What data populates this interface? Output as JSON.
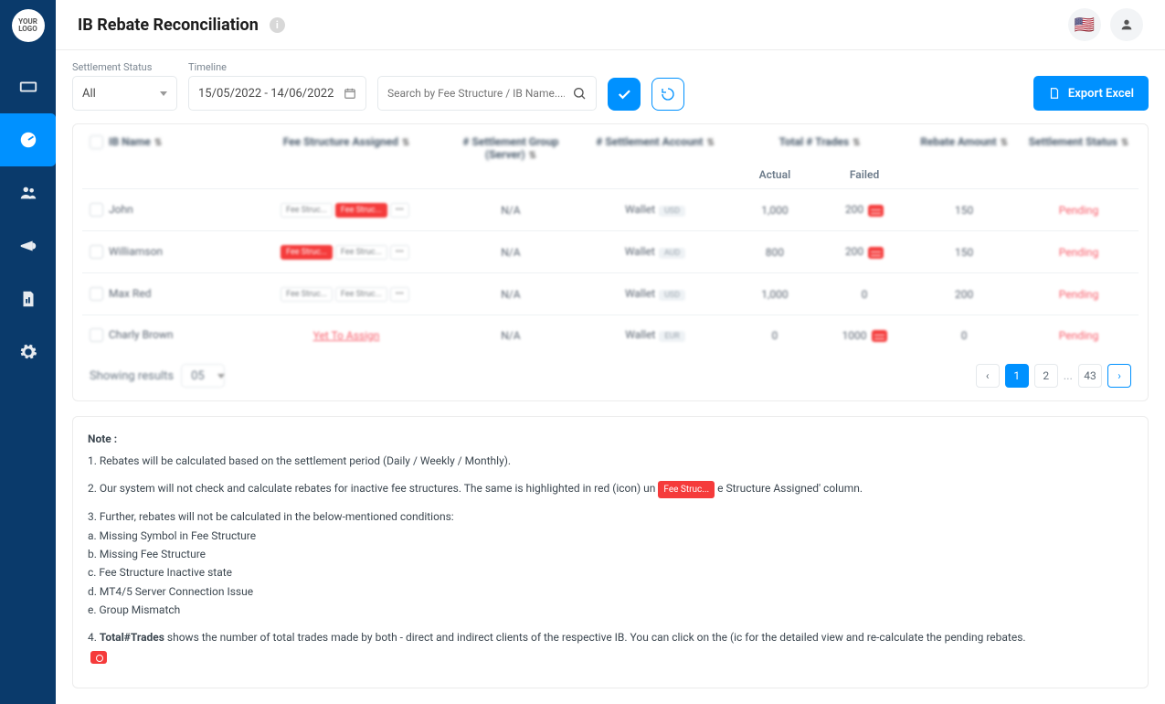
{
  "page": {
    "title": "IB Rebate Reconciliation"
  },
  "logo": "YOUR LOGO",
  "filters": {
    "status_label": "Settlement Status",
    "status_value": "All",
    "timeline_label": "Timeline",
    "timeline_value": "15/05/2022 - 14/06/2022",
    "search_placeholder": "Search by Fee Structure / IB Name...."
  },
  "export_label": "Export  Excel",
  "columns": {
    "ib": "IB Name",
    "fee": "Fee Structure Assigned",
    "sgroup": "# Settlement Group (Server)",
    "sacct": "# Settlement Account",
    "trades": "Total # Trades",
    "rebate": "Rebate Amount",
    "status": "Settlement Status",
    "actual": "Actual",
    "failed": "Failed"
  },
  "rows": [
    {
      "name": "John",
      "fee1": "Fee Struc...",
      "fee2": "Fee Struc...",
      "fee2_red": true,
      "sgroup": "N/A",
      "acct": "Wallet",
      "cur": "USD",
      "actual": "1,000",
      "failed": "200",
      "failed_badge": true,
      "rebate": "150",
      "status": "Pending",
      "yta": false
    },
    {
      "name": "Williamson",
      "fee1": "Fee Struc...",
      "fee2": "Fee Struc...",
      "fee1_red": true,
      "sgroup": "N/A",
      "acct": "Wallet",
      "cur": "AUD",
      "actual": "800",
      "failed": "200",
      "failed_badge": true,
      "rebate": "150",
      "status": "Pending",
      "yta": false
    },
    {
      "name": "Max Red",
      "fee1": "Fee Struc...",
      "fee2": "Fee Struc...",
      "sgroup": "N/A",
      "acct": "Wallet",
      "cur": "USD",
      "actual": "1,000",
      "failed": "0",
      "failed_badge": false,
      "rebate": "200",
      "status": "Pending",
      "yta": false
    },
    {
      "name": "Charly Brown",
      "yta": true,
      "yta_label": "Yet To Assign",
      "sgroup": "N/A",
      "acct": "Wallet",
      "cur": "EUR",
      "actual": "0",
      "failed": "1000",
      "failed_badge": true,
      "rebate": "0",
      "status": "Pending"
    }
  ],
  "footer": {
    "showing": "Showing results",
    "per_page": "05",
    "pages": {
      "p1": "1",
      "p2": "2",
      "last": "43"
    }
  },
  "notes": {
    "title": "Note :",
    "n1": "1. Rebates will be calculated based on the settlement period (Daily / Weekly / Monthly).",
    "n2a": "2. Our system will not check and calculate rebates for inactive fee structures. The same is highlighted in red (icon) un",
    "n2_pill": "Fee Struc...",
    "n2b": "e Structure Assigned' column.",
    "n3": "3. Further, rebates will not be calculated in the below-mentioned conditions:",
    "n3a": "a. Missing Symbol in Fee Structure",
    "n3b": "b. Missing Fee Structure",
    "n3c": "c. Fee Structure Inactive state",
    "n3d": "d. MT4/5 Server Connection Issue",
    "n3e": "e. Group Mismatch",
    "n4a": "4. ",
    "n4bold": "Total#Trades",
    "n4b": " shows the number of total trades made by both - direct and indirect clients of the respective IB. You can click on the (ic  for the detailed view and re-calculate the pending rebates."
  }
}
